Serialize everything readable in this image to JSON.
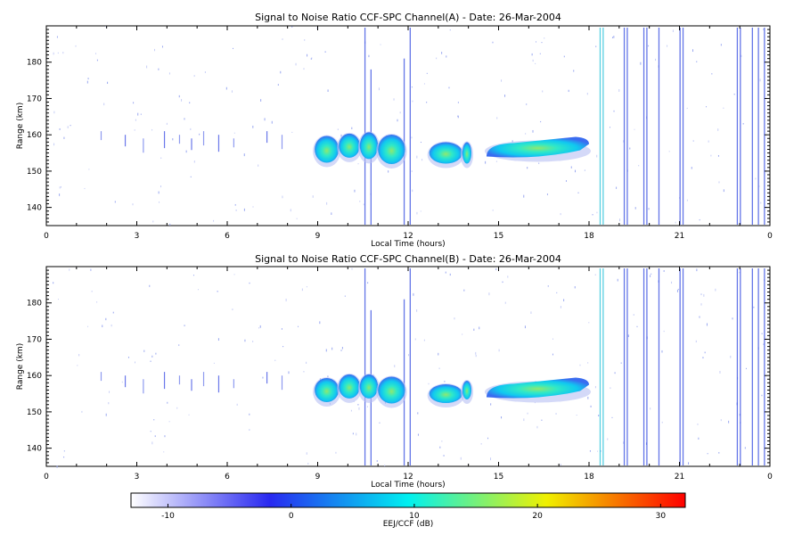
{
  "chart_data": [
    {
      "type": "heatmap",
      "title": "Signal to Noise Ratio CCF-SPC Channel(A) - Date: 26-Mar-2004",
      "xlabel": "Local Time (hours)",
      "ylabel": "Range (km)",
      "xlim": [
        0,
        24
      ],
      "ylim": [
        135,
        190
      ],
      "xticks": [
        "0",
        "3",
        "6",
        "9",
        "12",
        "15",
        "18",
        "21",
        "0"
      ],
      "yticks": [
        140,
        150,
        160,
        170,
        180
      ],
      "echoes": [
        {
          "t_start": 8.9,
          "t_end": 9.7,
          "range_center": 156,
          "snr_peak": 8
        },
        {
          "t_start": 9.7,
          "t_end": 10.4,
          "range_center": 157,
          "snr_peak": 7
        },
        {
          "t_start": 10.4,
          "t_end": 11.0,
          "range_center": 157,
          "snr_peak": 8
        },
        {
          "t_start": 11.0,
          "t_end": 11.9,
          "range_center": 156,
          "snr_peak": 9
        },
        {
          "t_start": 12.7,
          "t_end": 13.8,
          "range_center": 155,
          "snr_peak": 6
        },
        {
          "t_start": 13.8,
          "t_end": 14.1,
          "range_center": 155,
          "snr_peak": 6
        },
        {
          "t_start": 14.6,
          "t_end": 18.0,
          "range_center": 156,
          "snr_peak": 8
        }
      ]
    },
    {
      "type": "heatmap",
      "title": "Signal to Noise Ratio CCF-SPC Channel(B) - Date: 26-Mar-2004",
      "xlabel": "Local Time (hours)",
      "ylabel": "Range (km)",
      "xlim": [
        0,
        24
      ],
      "ylim": [
        135,
        190
      ],
      "xticks": [
        "0",
        "3",
        "6",
        "9",
        "12",
        "15",
        "18",
        "21",
        "0"
      ],
      "yticks": [
        140,
        150,
        160,
        170,
        180
      ],
      "echoes": [
        {
          "t_start": 8.9,
          "t_end": 9.7,
          "range_center": 156,
          "snr_peak": 7
        },
        {
          "t_start": 9.7,
          "t_end": 10.4,
          "range_center": 157,
          "snr_peak": 7
        },
        {
          "t_start": 10.4,
          "t_end": 11.0,
          "range_center": 157,
          "snr_peak": 7
        },
        {
          "t_start": 11.0,
          "t_end": 11.9,
          "range_center": 156,
          "snr_peak": 8
        },
        {
          "t_start": 12.7,
          "t_end": 13.8,
          "range_center": 155,
          "snr_peak": 5
        },
        {
          "t_start": 13.8,
          "t_end": 14.1,
          "range_center": 156,
          "snr_peak": 5
        },
        {
          "t_start": 14.6,
          "t_end": 18.0,
          "range_center": 156,
          "snr_peak": 7
        }
      ]
    }
  ],
  "colorbar": {
    "label": "EEJ/CCF (dB)",
    "range": [
      -13,
      32
    ],
    "ticks": [
      "-10",
      "0",
      "10",
      "20",
      "30"
    ],
    "tick_values": [
      -10,
      0,
      10,
      20,
      30
    ],
    "colors": [
      "#ffffff",
      "#2828f0",
      "#00f0f0",
      "#f0f000",
      "#ff0000"
    ]
  }
}
